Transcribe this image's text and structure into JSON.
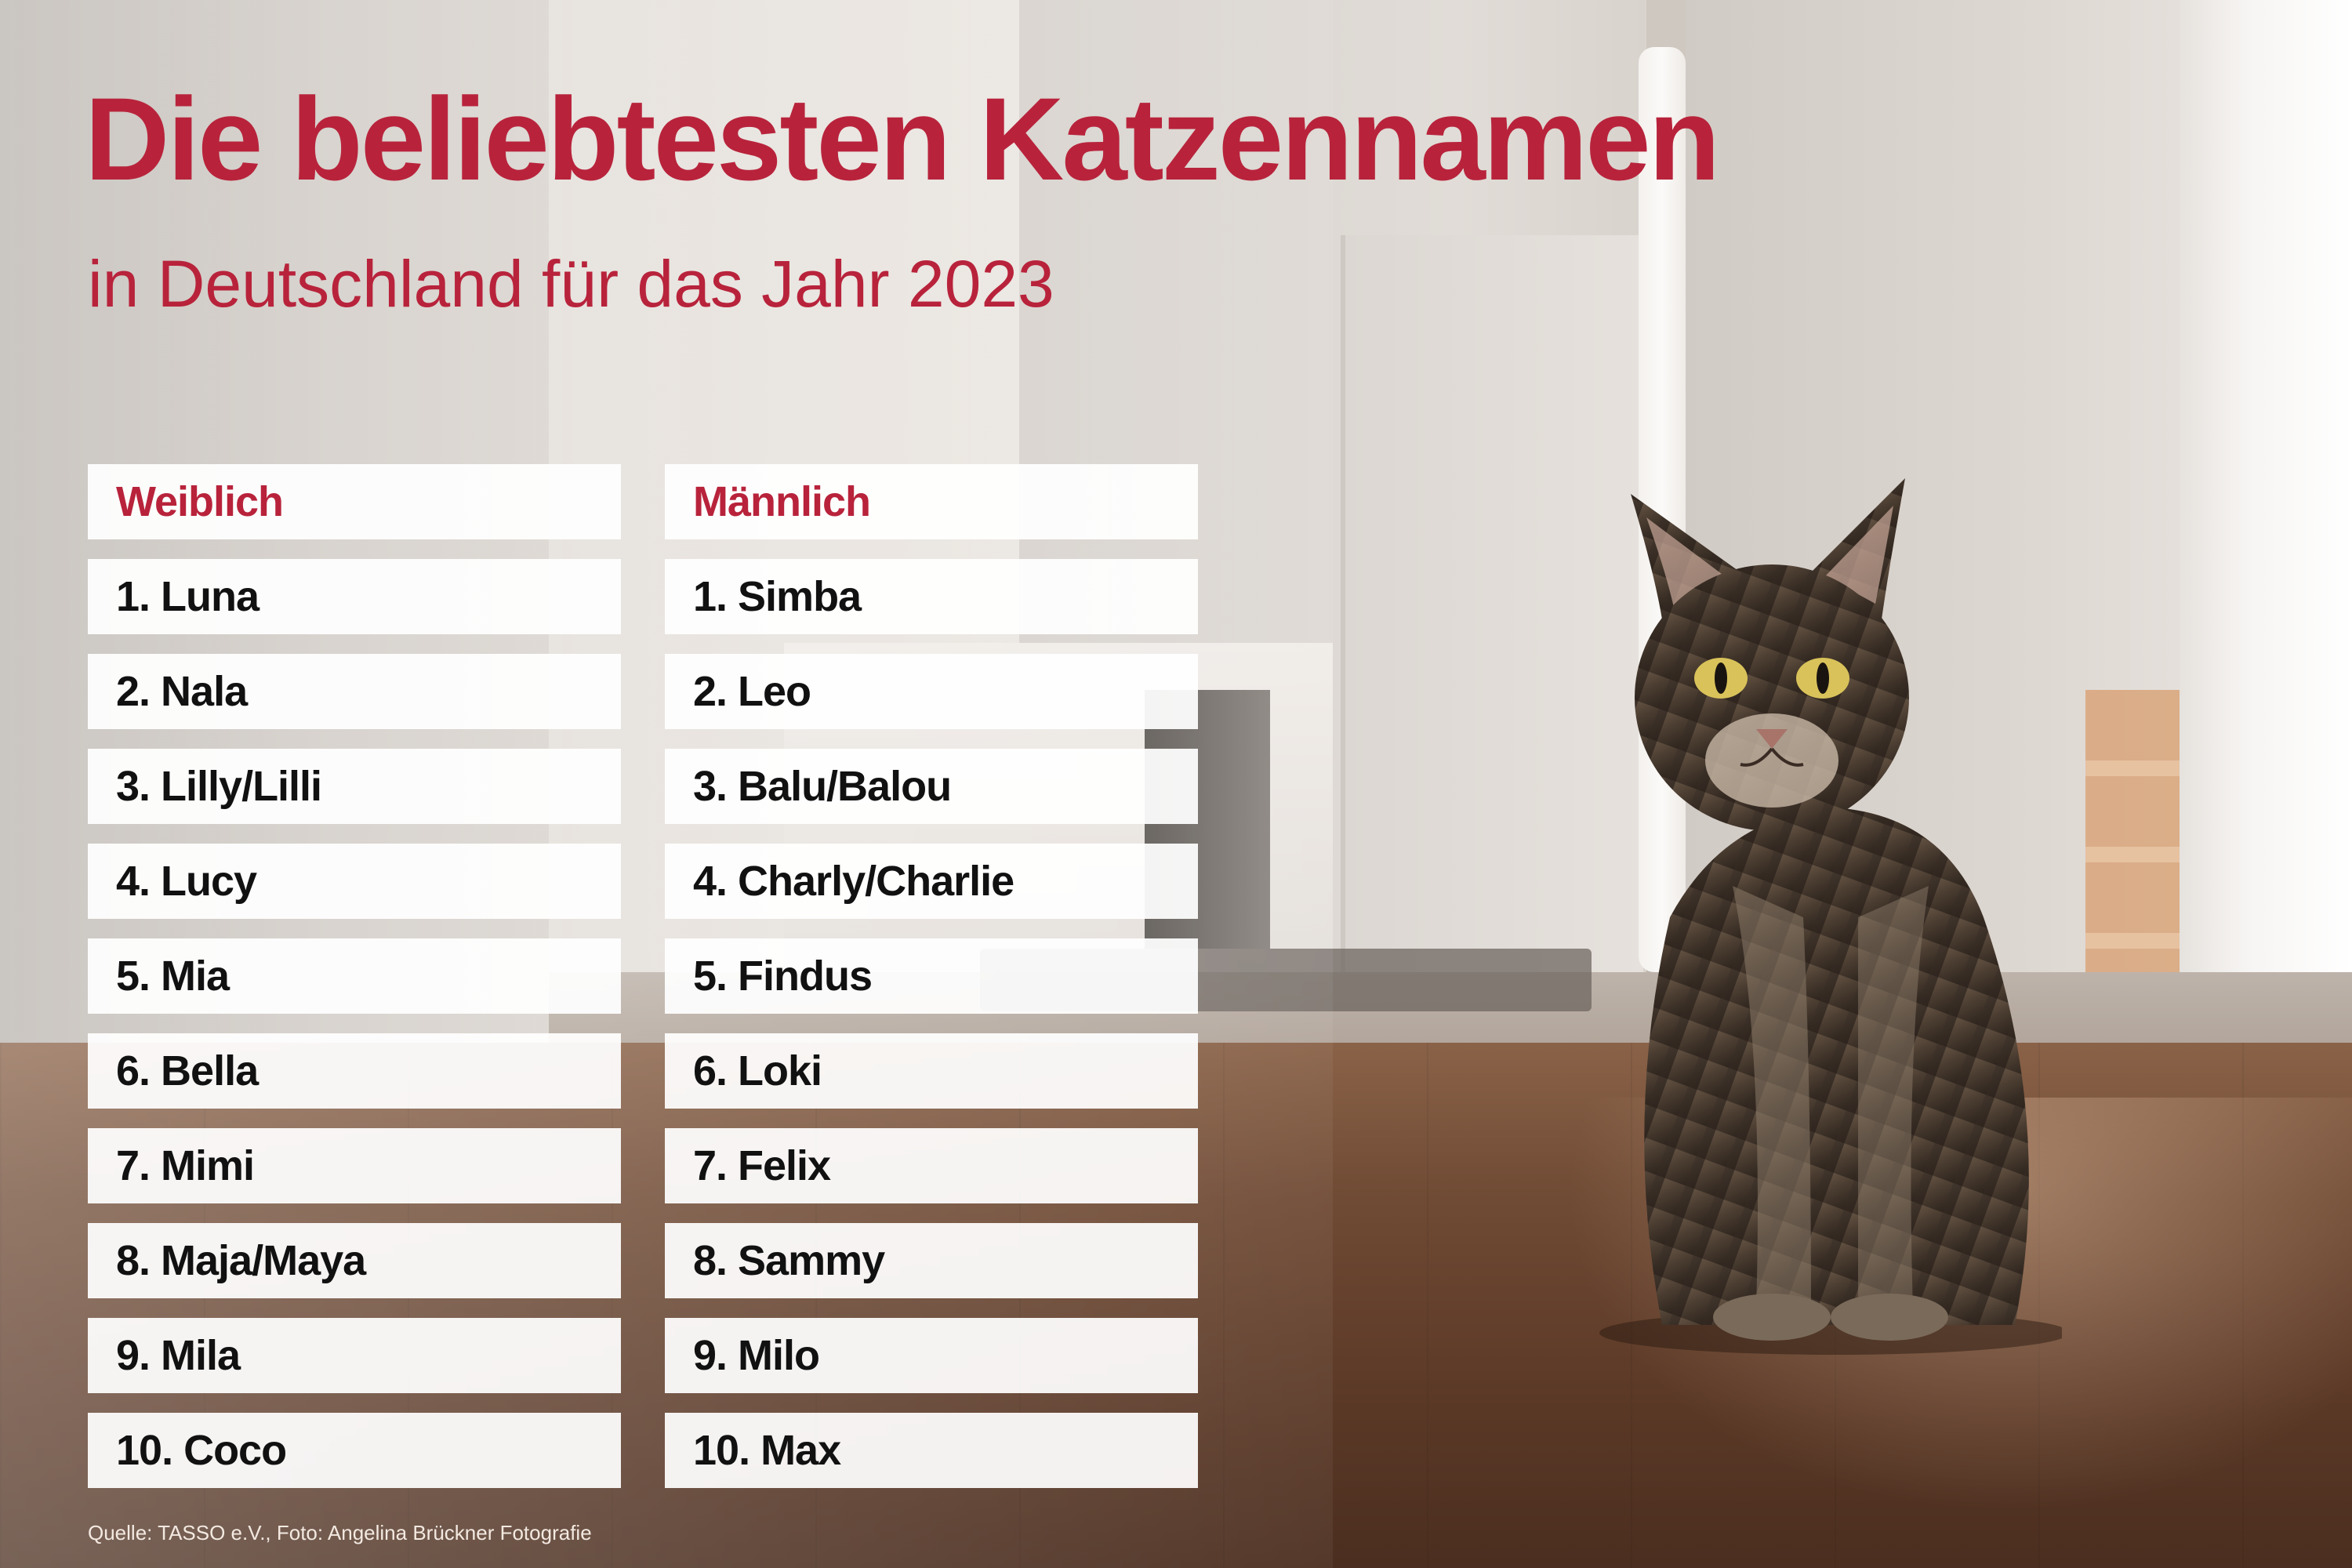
{
  "header": {
    "title": "Die beliebtesten Katzennamen",
    "subtitle": "in Deutschland für das Jahr 2023"
  },
  "colors": {
    "accent": "#b8233b",
    "text": "#111111",
    "row_background": "#ffffff"
  },
  "lists": {
    "female": {
      "heading": "Weiblich",
      "items": [
        "1. Luna",
        "2. Nala",
        "3. Lilly/Lilli",
        "4. Lucy",
        "5. Mia",
        "6. Bella",
        "7. Mimi",
        "8. Maja/Maya",
        "9. Mila",
        "10. Coco"
      ]
    },
    "male": {
      "heading": "Männlich",
      "items": [
        "1. Simba",
        "2. Leo",
        "3. Balu/Balou",
        "4. Charly/Charlie",
        "5. Findus",
        "6. Loki",
        "7. Felix",
        "8. Sammy",
        "9. Milo",
        "10. Max"
      ]
    }
  },
  "footer": {
    "source": "Quelle: TASSO e.V., Foto: Angelina Brückner Fotografie"
  },
  "background": {
    "icon": "tabby-cat-photo"
  }
}
